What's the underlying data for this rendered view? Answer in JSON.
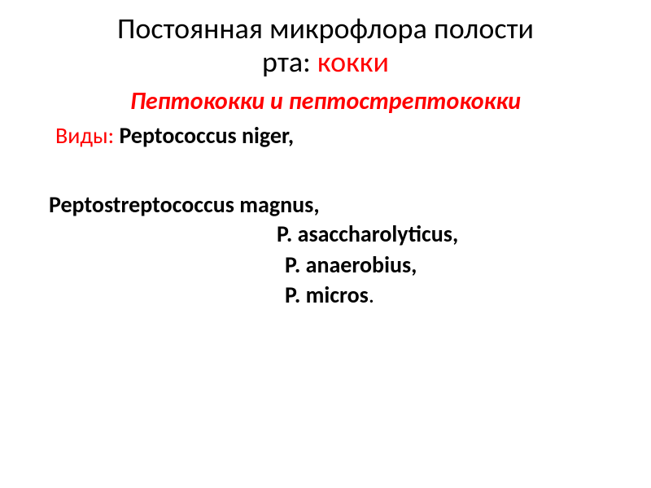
{
  "slide": {
    "title_part1": "Постоянная микрофлора полости",
    "title_part2": "рта: ",
    "title_highlight": "кокки",
    "subtitle": "Пептококки и пептострептококки",
    "species_label": "Виды: ",
    "species_1": "Peptococcus niger,",
    "species_2": "Peptostreptococcus magnus,",
    "species_3": "P. asaccharolyticus,",
    "species_4": "P. anaerobius,",
    "species_5": "P. micros",
    "period": "."
  },
  "colors": {
    "text_black": "#000000",
    "text_red": "#ff0000",
    "background": "#ffffff"
  },
  "typography": {
    "title_fontsize": 36,
    "subtitle_fontsize": 30,
    "body_fontsize": 28,
    "font_family": "Calibri"
  }
}
